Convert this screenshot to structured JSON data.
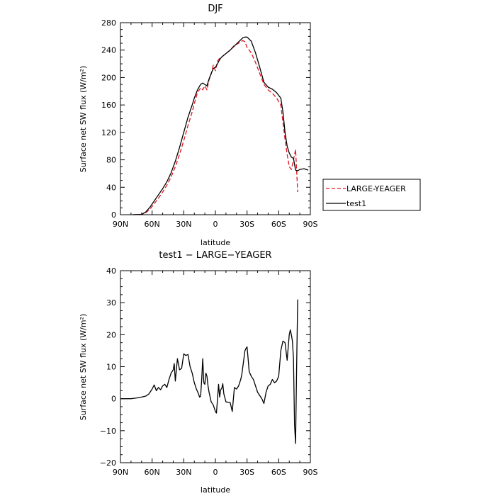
{
  "chart_data": [
    {
      "type": "line",
      "title": "DJF",
      "xlabel": "latitude",
      "ylabel": "Surface net SW flux (W/m²)",
      "xlim": [
        90,
        -90
      ],
      "ylim": [
        0,
        280
      ],
      "x_ticks": [
        90,
        60,
        30,
        0,
        -30,
        -60,
        -90
      ],
      "x_tick_labels": [
        "90N",
        "60N",
        "30N",
        "0",
        "30S",
        "60S",
        "90S"
      ],
      "y_ticks": [
        0,
        40,
        80,
        120,
        160,
        200,
        240,
        280
      ],
      "y_tick_labels": [
        "0",
        "40",
        "80",
        "120",
        "160",
        "200",
        "240",
        "280"
      ],
      "legend_position": "outside-right",
      "series": [
        {
          "name": "LARGE-YEAGER",
          "color": "#e0141e",
          "style": "dashed",
          "x": [
            78,
            70,
            66,
            62,
            58,
            54,
            50,
            46,
            42,
            38,
            34,
            30,
            26,
            22,
            20,
            17,
            14,
            12,
            10,
            8,
            6,
            4,
            2,
            0,
            -2,
            -4,
            -6,
            -10,
            -14,
            -18,
            -22,
            -26,
            -28,
            -30,
            -34,
            -38,
            -42,
            -46,
            -50,
            -54,
            -58,
            -62,
            -64,
            -66,
            -68,
            -70,
            -72,
            -74,
            -76,
            -78
          ],
          "y": [
            0,
            0.5,
            3,
            8,
            16,
            24,
            33,
            43,
            55,
            70,
            88,
            108,
            130,
            150,
            162,
            178,
            185,
            182,
            188,
            182,
            197,
            205,
            218,
            210,
            224,
            228,
            230,
            235,
            240,
            247,
            250,
            254,
            252,
            244,
            236,
            222,
            206,
            190,
            182,
            177,
            170,
            160,
            135,
            110,
            88,
            70,
            66,
            80,
            95,
            33
          ]
        },
        {
          "name": "test1",
          "color": "#000000",
          "style": "solid",
          "x": [
            78,
            70,
            66,
            62,
            58,
            54,
            50,
            46,
            42,
            38,
            34,
            30,
            26,
            22,
            20,
            17,
            14,
            12,
            10,
            8,
            6,
            4,
            2,
            0,
            -2,
            -4,
            -6,
            -10,
            -14,
            -18,
            -22,
            -26,
            -28,
            -30,
            -34,
            -38,
            -42,
            -46,
            -50,
            -54,
            -58,
            -62,
            -64,
            -66,
            -68,
            -70,
            -72,
            -74,
            -76,
            -78,
            -80,
            -84,
            -88
          ],
          "y": [
            0,
            0.5,
            4,
            11,
            20,
            29,
            38,
            48,
            61,
            78,
            98,
            120,
            142,
            160,
            170,
            182,
            190,
            192,
            190,
            188,
            198,
            206,
            213,
            215,
            220,
            226,
            230,
            235,
            240,
            246,
            252,
            258,
            259,
            259,
            253,
            236,
            215,
            193,
            186,
            183,
            178,
            170,
            150,
            120,
            100,
            90,
            84,
            82,
            65,
            64,
            66,
            67,
            65
          ]
        }
      ]
    },
    {
      "type": "line",
      "title": "test1 − LARGE−YEAGER",
      "xlabel": "latitude",
      "ylabel": "Surface net SW flux (W/m²)",
      "xlim": [
        90,
        -90
      ],
      "ylim": [
        -20,
        40
      ],
      "x_ticks": [
        90,
        60,
        30,
        0,
        -30,
        -60,
        -90
      ],
      "x_tick_labels": [
        "90N",
        "60N",
        "30N",
        "0",
        "30S",
        "60S",
        "90S"
      ],
      "y_ticks": [
        -20,
        -10,
        0,
        10,
        20,
        30,
        40
      ],
      "y_tick_labels": [
        "−20",
        "−10",
        "0",
        "10",
        "20",
        "30",
        "40"
      ],
      "series": [
        {
          "color": "#000000",
          "style": "solid",
          "x": [
            90,
            80,
            75,
            70,
            66,
            63,
            60,
            58,
            56,
            54,
            52,
            50,
            48,
            46,
            44,
            43,
            42,
            40,
            39,
            38,
            36,
            34,
            32,
            30,
            28,
            26,
            24,
            22,
            20,
            18,
            16,
            15,
            14,
            13,
            12,
            11,
            10,
            9,
            8,
            7,
            6,
            4,
            2,
            0,
            -1,
            -2,
            -3,
            -4,
            -5,
            -6,
            -7,
            -8,
            -10,
            -12,
            -14,
            -16,
            -18,
            -20,
            -22,
            -23,
            -24,
            -25,
            -26,
            -27,
            -28,
            -29,
            -30,
            -31,
            -32,
            -34,
            -36,
            -38,
            -40,
            -42,
            -44,
            -46,
            -48,
            -50,
            -52,
            -54,
            -56,
            -58,
            -60,
            -62,
            -64,
            -66,
            -68,
            -70,
            -71,
            -72,
            -73,
            -74,
            -75,
            -76,
            -77,
            -78
          ],
          "y": [
            0,
            0,
            0.2,
            0.5,
            0.8,
            1.5,
            3,
            4.3,
            2.5,
            3.5,
            2.8,
            4,
            4.5,
            3.5,
            6,
            7,
            8,
            9,
            11,
            5.5,
            12.5,
            9,
            9.5,
            14,
            13.5,
            13.8,
            10,
            8,
            5,
            3,
            1.5,
            0.5,
            0.8,
            6,
            12.5,
            5,
            4.5,
            8,
            7,
            4,
            2,
            -1,
            -2,
            -4,
            -4.5,
            0,
            4.5,
            0.5,
            2.8,
            3.2,
            4.7,
            1.5,
            -1,
            -1.1,
            -1.2,
            -4,
            3.5,
            3,
            4,
            5,
            6,
            7.5,
            10,
            12.5,
            15,
            15.7,
            16.2,
            12.5,
            8.5,
            7,
            6,
            4,
            2,
            1,
            0,
            -1.5,
            2,
            4,
            4.5,
            6,
            5,
            5.5,
            7,
            15,
            18,
            17.5,
            12,
            20,
            21.5,
            20,
            18,
            12.5,
            -8,
            -14,
            10,
            31
          ]
        }
      ]
    }
  ]
}
